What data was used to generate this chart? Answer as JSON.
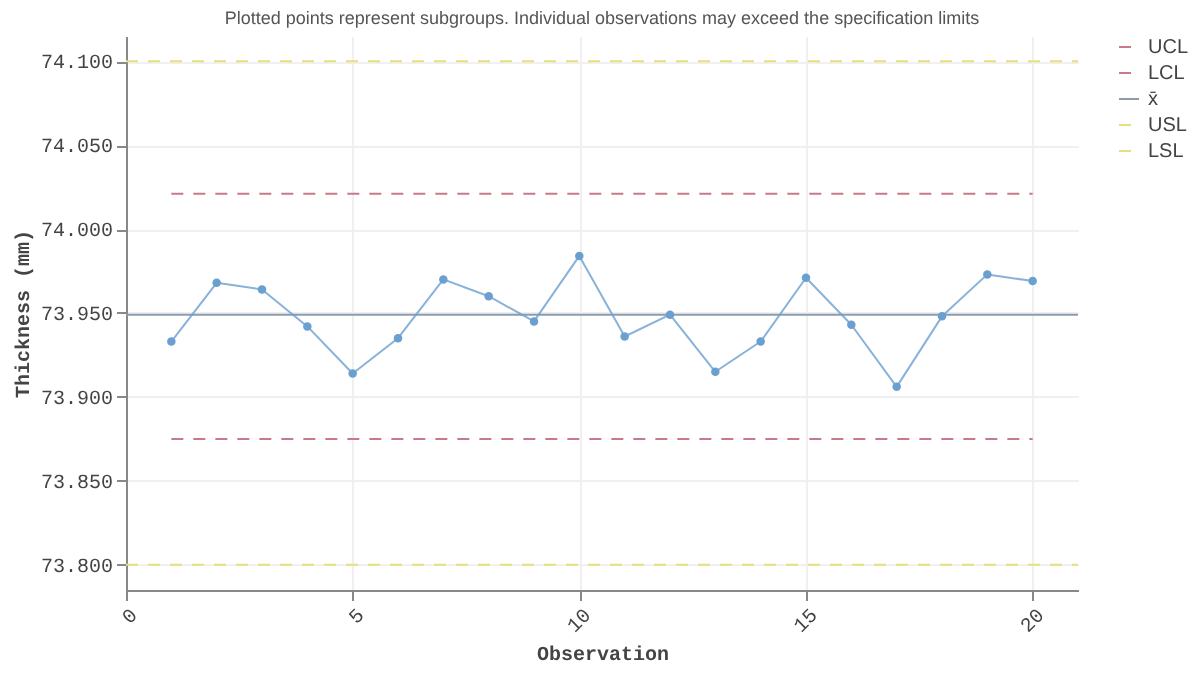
{
  "chart_data": {
    "type": "line",
    "title": "Plotted points represent subgroups. Individual observations may exceed the specification limits",
    "xlabel": "Observation",
    "ylabel": "Thickness (mm)",
    "xlim": [
      0,
      21
    ],
    "xticks": [
      0,
      5,
      10,
      15,
      20
    ],
    "ylim": [
      73.785,
      74.115
    ],
    "yticks": [
      {
        "value": 73.8,
        "label": "73.800"
      },
      {
        "value": 73.85,
        "label": "73.850"
      },
      {
        "value": 73.9,
        "label": "73.900"
      },
      {
        "value": 73.95,
        "label": "73.950"
      },
      {
        "value": 74.0,
        "label": "74.000"
      },
      {
        "value": 74.05,
        "label": "74.050"
      },
      {
        "value": 74.1,
        "label": "74.100"
      }
    ],
    "grid": true,
    "legend": "top right",
    "series": [
      {
        "color": "#6a9fcf",
        "marker": "circle",
        "line_style": "solid",
        "x": [
          1,
          2,
          3,
          4,
          5,
          6,
          7,
          8,
          9,
          10,
          11,
          12,
          13,
          14,
          15,
          16,
          17,
          18,
          19,
          20
        ],
        "values": [
          73.933,
          73.968,
          73.964,
          73.942,
          73.914,
          73.935,
          73.97,
          73.96,
          73.945,
          73.984,
          73.936,
          73.949,
          73.915,
          73.933,
          73.971,
          73.943,
          73.906,
          73.948,
          73.973,
          73.969
        ]
      },
      {
        "name": "UCL",
        "color": "#c97a88",
        "line_style": "dashed",
        "x": [
          1,
          20
        ],
        "values": [
          74.021,
          74.021
        ]
      },
      {
        "name": "LCL",
        "color": "#c97a88",
        "line_style": "dashed",
        "x": [
          1,
          20
        ],
        "values": [
          73.875,
          73.875
        ]
      },
      {
        "name": "x̄",
        "color": "#8c9cac",
        "line_style": "solid",
        "x": [
          0,
          21
        ],
        "values": [
          73.949,
          73.949
        ]
      },
      {
        "name": "USL",
        "color": "#e6df7c",
        "line_style": "dashed",
        "x": [
          0,
          21
        ],
        "values": [
          74.1,
          74.1
        ]
      },
      {
        "name": "LSL",
        "color": "#e6df7c",
        "line_style": "dashed",
        "x": [
          0,
          21
        ],
        "values": [
          73.8,
          73.8
        ]
      }
    ]
  }
}
